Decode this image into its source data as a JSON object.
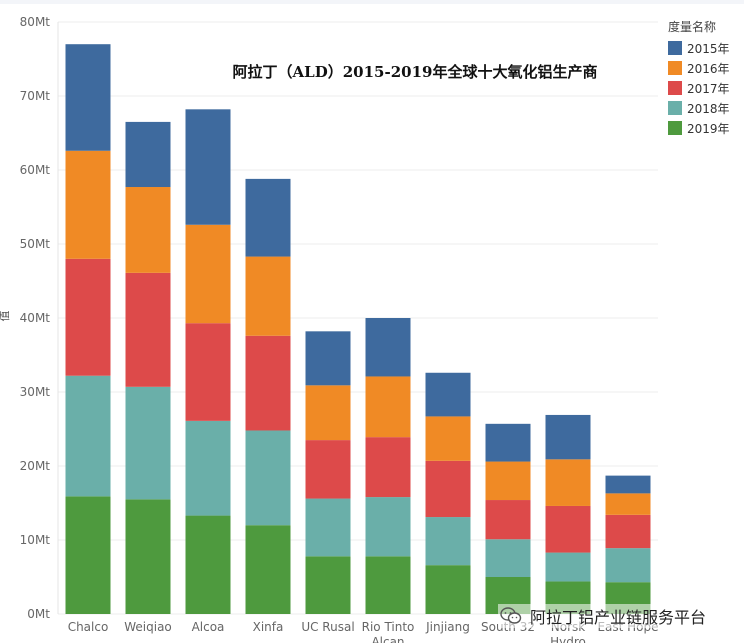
{
  "chart_data": {
    "type": "bar",
    "stacked": true,
    "title": "阿拉丁（ALD）2015-2019年全球十大氧化铝生产商",
    "ylabel": "值",
    "xlabel": "",
    "ylim": [
      0,
      80
    ],
    "yticks": [
      "0Mt",
      "10Mt",
      "20Mt",
      "30Mt",
      "40Mt",
      "50Mt",
      "60Mt",
      "70Mt",
      "80Mt"
    ],
    "grid": true,
    "legend_title": "度量名称",
    "legend_position": "top-right",
    "categories": [
      "Chalco",
      "Weiqiao",
      "Alcoa",
      "Xinfa",
      "UC Rusal",
      "Rio Tinto Alcan",
      "Jinjiang",
      "South 32",
      "Norsk Hydro",
      "East Hope"
    ],
    "series": [
      {
        "name": "2019年",
        "color": "#4e9a3e",
        "values": [
          15.9,
          15.5,
          13.3,
          12.0,
          7.8,
          7.8,
          6.6,
          5.0,
          4.4,
          4.3
        ]
      },
      {
        "name": "2018年",
        "color": "#6aafa9",
        "values": [
          16.3,
          15.2,
          12.8,
          12.8,
          7.8,
          8.0,
          6.5,
          5.1,
          3.9,
          4.6
        ]
      },
      {
        "name": "2017年",
        "color": "#dd4a4a",
        "values": [
          15.8,
          15.4,
          13.2,
          12.8,
          7.9,
          8.1,
          7.6,
          5.3,
          6.3,
          4.5
        ]
      },
      {
        "name": "2016年",
        "color": "#f08a25",
        "values": [
          14.6,
          11.6,
          13.3,
          10.7,
          7.4,
          8.2,
          6.0,
          5.2,
          6.3,
          2.9
        ]
      },
      {
        "name": "2015年",
        "color": "#3e6a9e",
        "values": [
          14.4,
          8.8,
          15.6,
          10.5,
          7.3,
          7.9,
          5.9,
          5.1,
          6.0,
          2.4
        ]
      }
    ]
  },
  "watermark": {
    "text": "阿拉丁铝产业链服务平台",
    "icon": "wechat-icon"
  }
}
